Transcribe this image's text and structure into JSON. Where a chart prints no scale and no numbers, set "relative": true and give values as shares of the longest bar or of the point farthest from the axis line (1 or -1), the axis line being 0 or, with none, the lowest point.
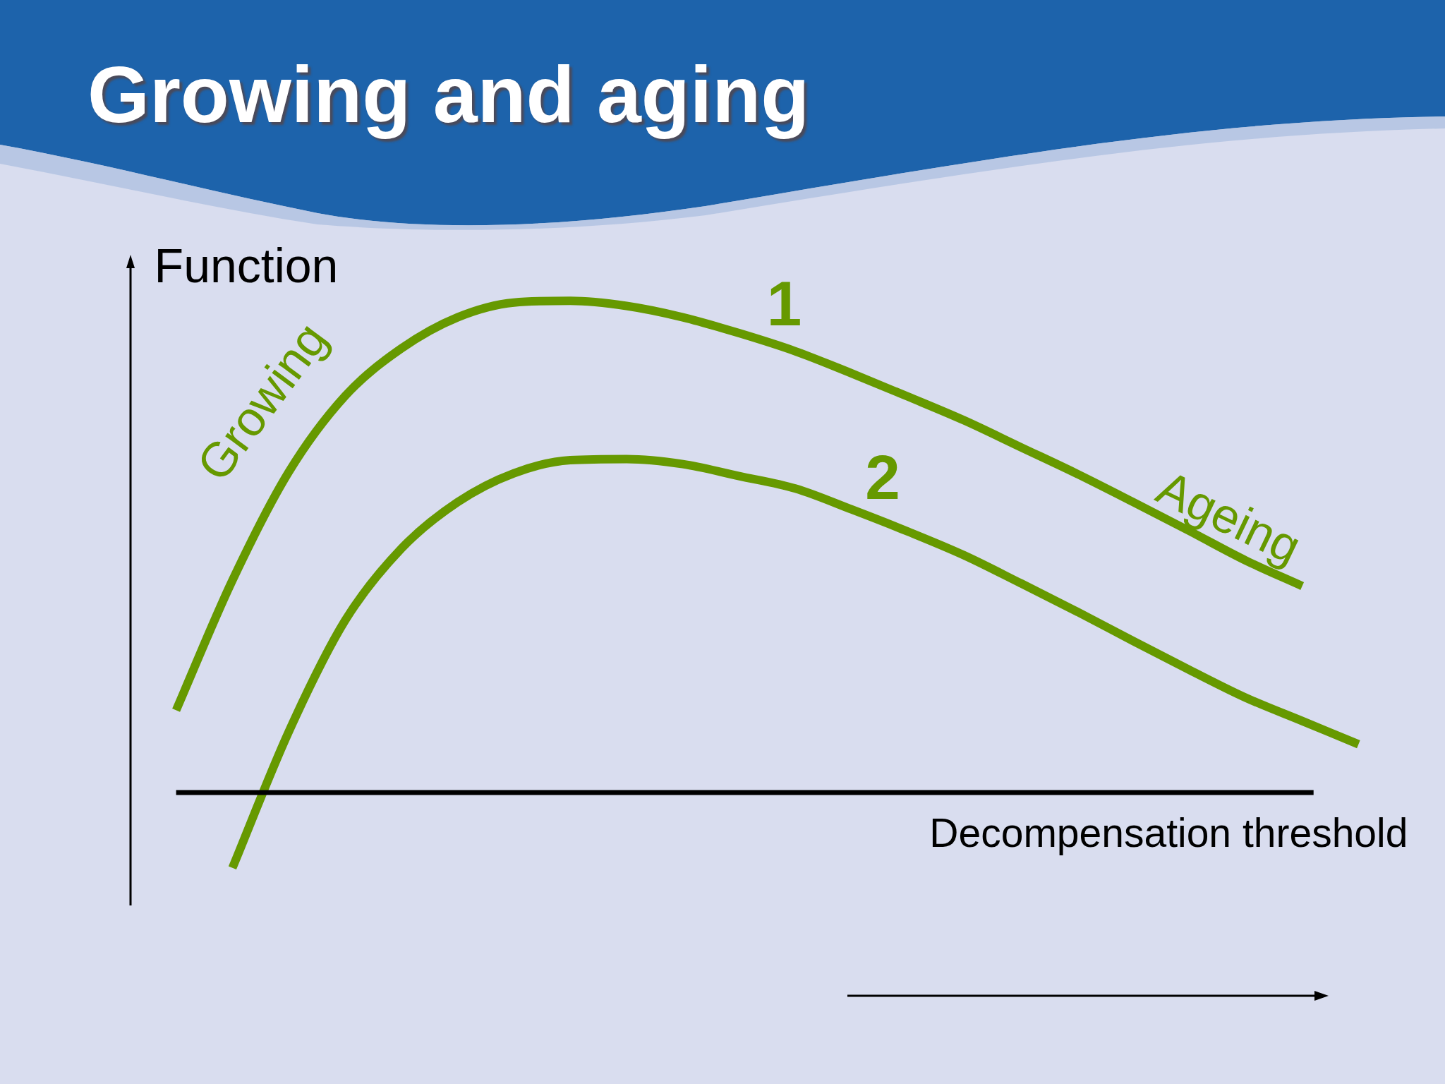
{
  "chart_data": {
    "type": "line",
    "title": "Growing and aging",
    "ylabel": "Function",
    "relative": true,
    "line_style": "solid",
    "categories": [
      null,
      null,
      null,
      null,
      null,
      null,
      null,
      null,
      null,
      null,
      null,
      null,
      null,
      null,
      null,
      null,
      null,
      null,
      null,
      null,
      null,
      null
    ],
    "series": [
      {
        "name": "1",
        "color": "#669900",
        "values": [
          0.278,
          0.507,
          0.698,
          0.832,
          0.916,
          0.971,
          0.997,
          1,
          0.991,
          0.971,
          0.943,
          0.911,
          0.872,
          0.831,
          0.789,
          0.742,
          0.695,
          0.645,
          0.594,
          0.542,
          0.497,
          null
        ]
      },
      {
        "name": "2",
        "color": "#669900",
        "values": [
          null,
          0,
          0.24,
          0.436,
          0.563,
          0.645,
          0.696,
          0.719,
          0.721,
          0.712,
          0.691,
          0.669,
          0.632,
          0.593,
          0.551,
          0.502,
          0.452,
          0.4,
          0.349,
          0.3,
          0.259,
          0.218
        ]
      }
    ],
    "ref_lines": [
      {
        "axis": "y",
        "value": 0.133,
        "label": "Decompensation threshold",
        "color": "#000000"
      }
    ],
    "annotations": [
      "Growing",
      "Ageing"
    ]
  }
}
